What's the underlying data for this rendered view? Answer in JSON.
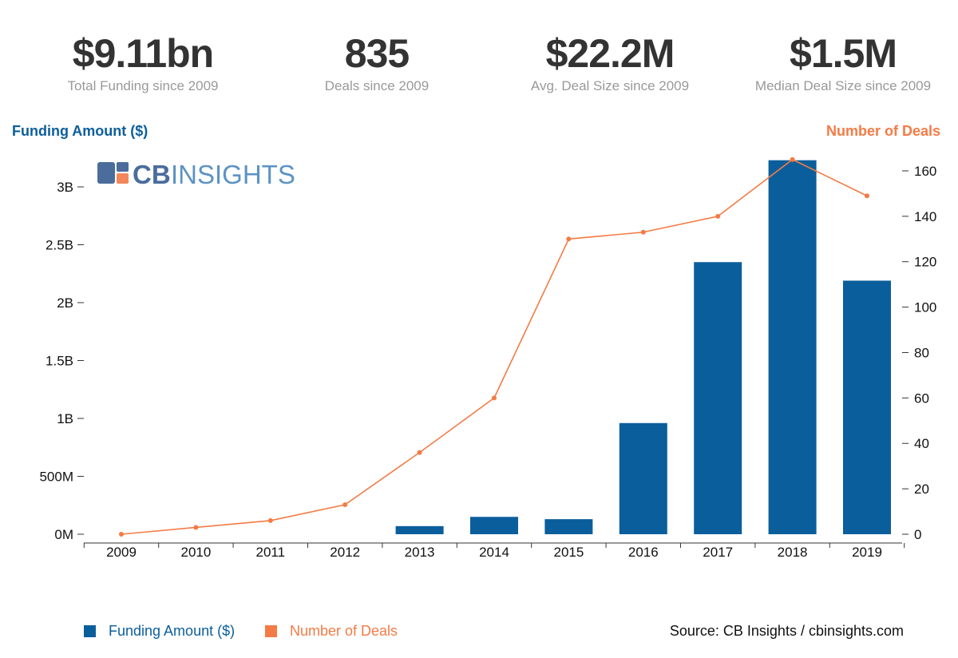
{
  "kpis": [
    {
      "value": "$9.11bn",
      "label": "Total Funding since 2009"
    },
    {
      "value": "835",
      "label": "Deals since 2009"
    },
    {
      "value": "$22.2M",
      "label": "Avg. Deal Size since 2009"
    },
    {
      "value": "$1.5M",
      "label": "Median Deal Size since 2009"
    }
  ],
  "logo": "CBINSIGHTS",
  "source": "Source: CB Insights / cbinsights.com",
  "chart_data": {
    "type": "bar+line",
    "categories": [
      "2009",
      "2010",
      "2011",
      "2012",
      "2013",
      "2014",
      "2015",
      "2016",
      "2017",
      "2018",
      "2019"
    ],
    "series": [
      {
        "name": "Funding Amount ($)",
        "type": "bar",
        "axis": "left",
        "color": "#0b5e9c",
        "values": [
          0,
          0,
          0,
          0,
          0.07,
          0.15,
          0.13,
          0.96,
          2.35,
          3.23,
          2.19
        ],
        "unit": "B"
      },
      {
        "name": "Number of Deals",
        "type": "line",
        "axis": "right",
        "color": "#f47b45",
        "values": [
          0,
          3,
          6,
          13,
          36,
          60,
          130,
          133,
          140,
          165,
          149
        ]
      }
    ],
    "y_left": {
      "label": "Funding Amount ($)",
      "range": [
        0,
        3.2
      ],
      "ticks": [
        "0M",
        "500M",
        "1B",
        "1.5B",
        "2B",
        "2.5B",
        "3B"
      ],
      "tick_values": [
        0,
        0.5,
        1,
        1.5,
        2,
        2.5,
        3
      ]
    },
    "y_right": {
      "label": "Number of Deals",
      "range": [
        0,
        168
      ],
      "ticks": [
        "0",
        "20",
        "40",
        "60",
        "80",
        "100",
        "120",
        "140",
        "160"
      ],
      "tick_values": [
        0,
        20,
        40,
        60,
        80,
        100,
        120,
        140,
        160
      ]
    },
    "grid": false,
    "legend": "bottom-left"
  }
}
